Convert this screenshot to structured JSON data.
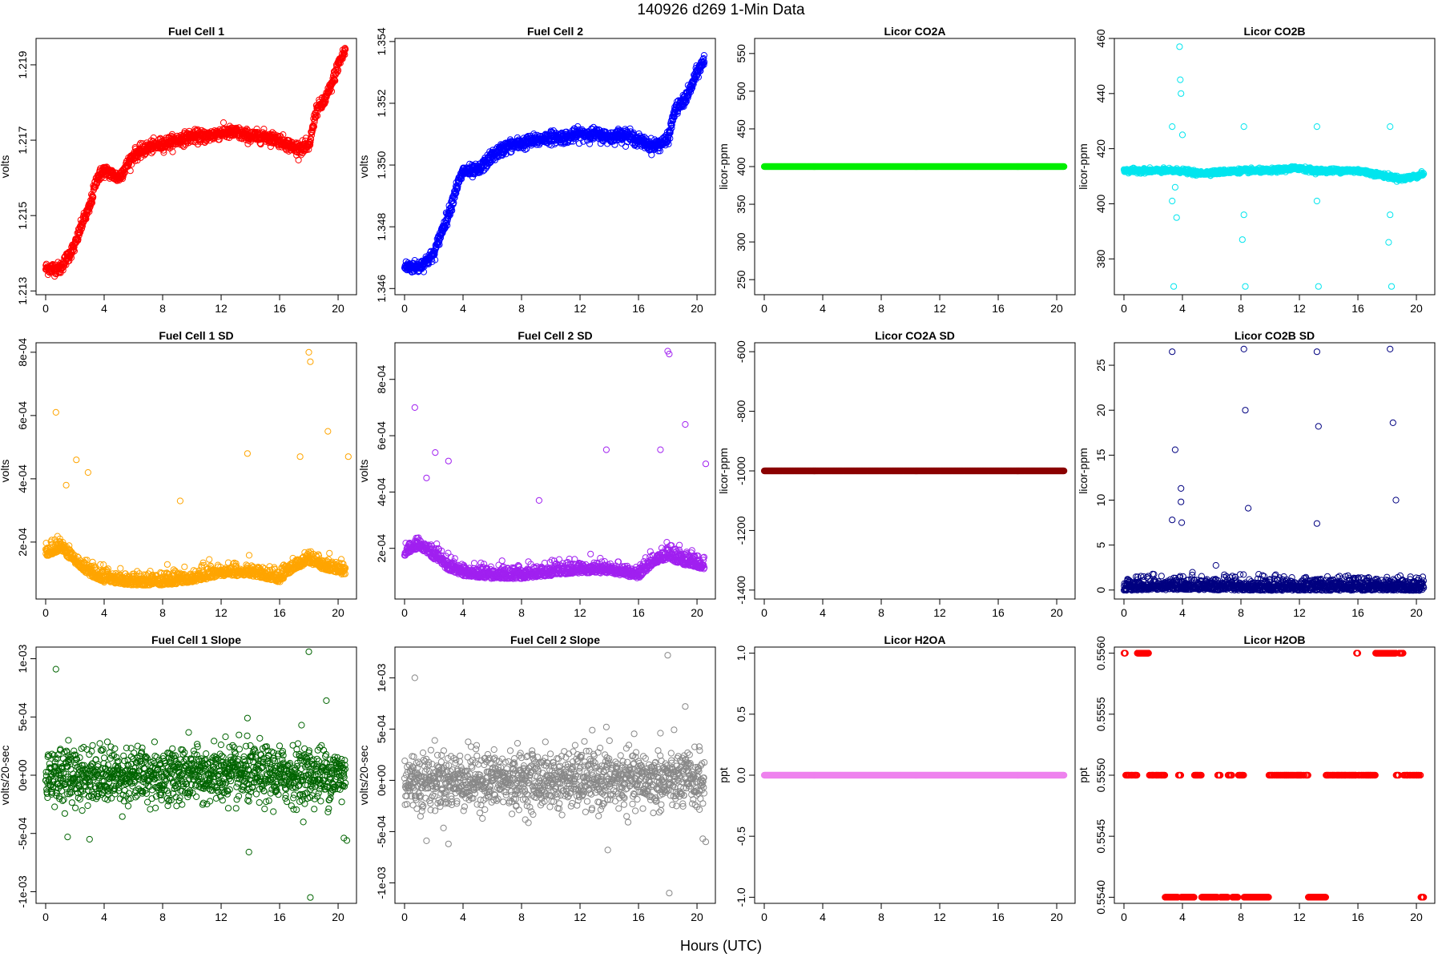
{
  "figure": {
    "title": "140926    d269    1-Min Data",
    "xlabel": "Hours (UTC)"
  },
  "chart_data": [
    {
      "type": "scatter",
      "title": "Fuel Cell 1",
      "ylabel": "volts",
      "color": "#ff0000",
      "xlim": [
        0,
        20.6
      ],
      "xticks": [
        0,
        4,
        8,
        12,
        16,
        20
      ],
      "ylim": [
        1.2129,
        1.2197
      ],
      "yticks": [
        {
          "v": 1.213,
          "label": "1.213"
        },
        {
          "v": 1.215,
          "label": "1.215"
        },
        {
          "v": 1.217,
          "label": "1.217"
        },
        {
          "v": 1.219,
          "label": "1.219"
        }
      ],
      "series": [
        {
          "x": [
            0,
            1,
            2,
            2.5,
            3,
            3.5,
            4,
            5,
            6,
            7,
            8,
            9,
            10,
            11,
            12,
            13,
            14,
            15,
            16,
            17,
            18,
            18.5,
            19,
            19.5,
            20,
            20.5
          ],
          "y": [
            1.2136,
            1.2136,
            1.2142,
            1.2148,
            1.2152,
            1.216,
            1.2162,
            1.216,
            1.2166,
            1.2168,
            1.2169,
            1.217,
            1.2171,
            1.2171,
            1.2172,
            1.2172,
            1.2171,
            1.2171,
            1.217,
            1.2168,
            1.2168,
            1.2178,
            1.218,
            1.2184,
            1.219,
            1.2194
          ]
        }
      ]
    },
    {
      "type": "scatter",
      "title": "Fuel Cell 2",
      "ylabel": "volts",
      "color": "#0000ff",
      "xlim": [
        0,
        20.6
      ],
      "xticks": [
        0,
        4,
        8,
        12,
        16,
        20
      ],
      "ylim": [
        1.3458,
        1.3541
      ],
      "yticks": [
        {
          "v": 1.346,
          "label": "1.346"
        },
        {
          "v": 1.348,
          "label": "1.348"
        },
        {
          "v": 1.35,
          "label": "1.350"
        },
        {
          "v": 1.352,
          "label": "1.352"
        },
        {
          "v": 1.354,
          "label": "1.354"
        }
      ],
      "series": [
        {
          "x": [
            0,
            1,
            2,
            2.5,
            3,
            3.5,
            4,
            5,
            6,
            7,
            8,
            9,
            10,
            11,
            12,
            13,
            14,
            15,
            16,
            17,
            18,
            18.5,
            19,
            19.5,
            20,
            20.5
          ],
          "y": [
            1.3467,
            1.3467,
            1.3471,
            1.3478,
            1.3484,
            1.3492,
            1.3498,
            1.3498,
            1.3503,
            1.3506,
            1.3507,
            1.3508,
            1.3509,
            1.3509,
            1.351,
            1.351,
            1.3509,
            1.351,
            1.3508,
            1.3506,
            1.3508,
            1.3518,
            1.352,
            1.3524,
            1.353,
            1.3534
          ]
        }
      ]
    },
    {
      "type": "scatter",
      "title": "Licor CO2A",
      "ylabel": "licor-ppm",
      "color": "#00ee00",
      "xlim": [
        0,
        20.6
      ],
      "xticks": [
        0,
        4,
        8,
        12,
        16,
        20
      ],
      "ylim": [
        230,
        570
      ],
      "yticks": [
        {
          "v": 250,
          "label": "250"
        },
        {
          "v": 300,
          "label": "300"
        },
        {
          "v": 350,
          "label": "350"
        },
        {
          "v": 400,
          "label": "400"
        },
        {
          "v": 450,
          "label": "450"
        },
        {
          "v": 500,
          "label": "500"
        },
        {
          "v": 550,
          "label": "550"
        }
      ],
      "series": [
        {
          "x": [
            0,
            20.5
          ],
          "y": [
            400,
            400
          ]
        }
      ]
    },
    {
      "type": "scatter",
      "title": "Licor CO2B",
      "ylabel": "licor-ppm",
      "color": "#00e5ee",
      "xlim": [
        0,
        20.6
      ],
      "xticks": [
        0,
        4,
        8,
        12,
        16,
        20
      ],
      "ylim": [
        367,
        460
      ],
      "yticks": [
        {
          "v": 380,
          "label": "380"
        },
        {
          "v": 400,
          "label": "400"
        },
        {
          "v": 420,
          "label": "420"
        },
        {
          "v": 440,
          "label": "440"
        },
        {
          "v": 460,
          "label": "460"
        }
      ],
      "series": [
        {
          "x": [
            0,
            3,
            3.5,
            4,
            5,
            8,
            10,
            12,
            13,
            16,
            18,
            19,
            20,
            20.5
          ],
          "y": [
            412,
            412,
            412,
            412,
            411,
            412,
            412,
            413,
            412,
            412,
            410,
            409,
            410,
            411
          ],
          "outliers_x": [
            3.3,
            3.4,
            3.6,
            3.8,
            3.85,
            3.9,
            4.0,
            3.3,
            3.5,
            8.2,
            8.3,
            8.1,
            8.2,
            13.2,
            13.3,
            13.2,
            18.2,
            18.3,
            18.1,
            18.2
          ],
          "outliers_y": [
            428,
            370,
            395,
            457,
            445,
            440,
            425,
            401,
            406,
            428,
            370,
            387,
            396,
            428,
            370,
            401,
            428,
            370,
            386,
            396
          ]
        }
      ]
    },
    {
      "type": "scatter",
      "title": "Fuel Cell 1 SD",
      "ylabel": "volts",
      "color": "#ffa500",
      "xlim": [
        0,
        20.6
      ],
      "xticks": [
        0,
        4,
        8,
        12,
        16,
        20
      ],
      "ylim": [
        2e-05,
        0.00083
      ],
      "yticks": [
        {
          "v": 0.0002,
          "label": "2e-04"
        },
        {
          "v": 0.0004,
          "label": "4e-04"
        },
        {
          "v": 0.0006,
          "label": "6e-04"
        },
        {
          "v": 0.0008,
          "label": "8e-04"
        }
      ],
      "series": [
        {
          "x": [
            0,
            1,
            2,
            3,
            4,
            6,
            8,
            10,
            12,
            14,
            16,
            17,
            18,
            19,
            20,
            20.5
          ],
          "y": [
            0.00016,
            0.00018,
            0.00014,
            0.0001,
            8e-05,
            7e-05,
            7e-05,
            8e-05,
            0.0001,
            0.0001,
            8e-05,
            0.00012,
            0.00014,
            0.00012,
            0.00011,
            0.0001
          ],
          "outliers_x": [
            0.7,
            1.4,
            2.1,
            2.9,
            9.2,
            13.8,
            17.4,
            18.0,
            18.1,
            19.3,
            20.7
          ],
          "outliers_y": [
            0.00061,
            0.00038,
            0.00046,
            0.00042,
            0.00033,
            0.00048,
            0.00047,
            0.0008,
            0.00077,
            0.00055,
            0.00047
          ]
        }
      ]
    },
    {
      "type": "scatter",
      "title": "Fuel Cell 2 SD",
      "ylabel": "volts",
      "color": "#a020f0",
      "xlim": [
        0,
        20.6
      ],
      "xticks": [
        0,
        4,
        8,
        12,
        16,
        20
      ],
      "ylim": [
        2e-05,
        0.00093
      ],
      "yticks": [
        {
          "v": 0.0002,
          "label": "2e-04"
        },
        {
          "v": 0.0004,
          "label": "4e-04"
        },
        {
          "v": 0.0006,
          "label": "6e-04"
        },
        {
          "v": 0.0008,
          "label": "8e-04"
        }
      ],
      "series": [
        {
          "x": [
            0,
            1,
            2,
            3,
            4,
            6,
            8,
            10,
            12,
            14,
            16,
            17,
            18,
            19,
            20,
            20.5
          ],
          "y": [
            0.00018,
            0.00021,
            0.00017,
            0.00013,
            0.00011,
            0.0001,
            0.0001,
            0.00011,
            0.00012,
            0.00012,
            0.0001,
            0.00015,
            0.00017,
            0.00015,
            0.00014,
            0.00013
          ],
          "outliers_x": [
            0.7,
            1.5,
            2.1,
            3.0,
            9.2,
            13.8,
            17.5,
            18.0,
            18.1,
            19.2,
            20.6
          ],
          "outliers_y": [
            0.0007,
            0.00045,
            0.00054,
            0.00051,
            0.00037,
            0.00055,
            0.00055,
            0.0009,
            0.00089,
            0.00064,
            0.0005
          ]
        }
      ]
    },
    {
      "type": "scatter",
      "title": "Licor CO2A SD",
      "ylabel": "licor-ppm",
      "color": "#8b0000",
      "xlim": [
        0,
        20.6
      ],
      "xticks": [
        0,
        4,
        8,
        12,
        16,
        20
      ],
      "ylim": [
        -1430,
        -570
      ],
      "yticks": [
        {
          "v": -1400,
          "label": "-1400"
        },
        {
          "v": -1200,
          "label": "-1200"
        },
        {
          "v": -1000,
          "label": "-1000"
        },
        {
          "v": -800,
          "label": "-800"
        },
        {
          "v": -600,
          "label": "-600"
        }
      ],
      "series": [
        {
          "x": [
            0,
            20.5
          ],
          "y": [
            -1000,
            -1000
          ]
        }
      ]
    },
    {
      "type": "scatter",
      "title": "Licor CO2B SD",
      "ylabel": "licor-ppm",
      "color": "#000080",
      "xlim": [
        0,
        20.6
      ],
      "xticks": [
        0,
        4,
        8,
        12,
        16,
        20
      ],
      "ylim": [
        -1,
        27.5
      ],
      "yticks": [
        {
          "v": 0,
          "label": "0"
        },
        {
          "v": 5,
          "label": "5"
        },
        {
          "v": 10,
          "label": "10"
        },
        {
          "v": 15,
          "label": "15"
        },
        {
          "v": 20,
          "label": "20"
        },
        {
          "v": 25,
          "label": "25"
        }
      ],
      "series": [
        {
          "x": [
            0,
            4,
            8,
            12,
            16,
            20,
            20.5
          ],
          "y": [
            0.2,
            0.3,
            0.2,
            0.2,
            0.2,
            0.2,
            0.2
          ],
          "outliers_x": [
            3.3,
            3.5,
            3.9,
            3.9,
            3.95,
            3.3,
            8.2,
            8.3,
            8.5,
            13.2,
            13.3,
            13.2,
            18.2,
            18.4,
            18.6
          ],
          "outliers_y": [
            26.5,
            15.6,
            11.3,
            9.8,
            7.5,
            7.8,
            26.8,
            20.0,
            9.1,
            26.5,
            18.2,
            7.4,
            26.8,
            18.6,
            10.0
          ]
        }
      ]
    },
    {
      "type": "scatter",
      "title": "Fuel Cell 1 Slope",
      "ylabel": "volts/20-sec",
      "color": "#006400",
      "xlim": [
        0,
        20.6
      ],
      "xticks": [
        0,
        4,
        8,
        12,
        16,
        20
      ],
      "ylim": [
        -0.0011,
        0.0011
      ],
      "yticks": [
        {
          "v": -0.001,
          "label": "-1e-03"
        },
        {
          "v": -0.0005,
          "label": "-5e-04"
        },
        {
          "v": 0,
          "label": "0e+00"
        },
        {
          "v": 0.0005,
          "label": "5e-04"
        },
        {
          "v": 0.001,
          "label": "1e-03"
        }
      ],
      "series": [
        {
          "x": [
            0,
            20.5
          ],
          "y": [
            0,
            0
          ],
          "outliers_x": [
            0.7,
            1.5,
            3.0,
            12.3,
            13.9,
            13.8,
            17.5,
            18.0,
            18.1,
            19.2,
            20.4,
            20.6
          ],
          "outliers_y": [
            0.00091,
            -0.00053,
            -0.00055,
            0.00033,
            -0.00066,
            0.00049,
            0.00043,
            0.00106,
            -0.00105,
            0.00064,
            -0.00054,
            -0.00056
          ]
        }
      ]
    },
    {
      "type": "scatter",
      "title": "Fuel Cell 2 Slope",
      "ylabel": "volts/20-sec",
      "color": "#888888",
      "xlim": [
        0,
        20.6
      ],
      "xticks": [
        0,
        4,
        8,
        12,
        16,
        20
      ],
      "ylim": [
        -0.0012,
        0.0013
      ],
      "yticks": [
        {
          "v": -0.001,
          "label": "-1e-03"
        },
        {
          "v": -0.0005,
          "label": "-5e-04"
        },
        {
          "v": 0,
          "label": "0e+00"
        },
        {
          "v": 0.0005,
          "label": "5e-04"
        },
        {
          "v": 0.001,
          "label": "1e-03"
        }
      ],
      "series": [
        {
          "x": [
            0,
            20.5
          ],
          "y": [
            0,
            0
          ],
          "outliers_x": [
            0.7,
            1.5,
            3.0,
            12.3,
            13.9,
            13.8,
            17.5,
            18.0,
            18.1,
            19.2,
            20.4,
            20.6
          ],
          "outliers_y": [
            0.001,
            -0.00059,
            -0.00062,
            0.00038,
            -0.00068,
            0.00052,
            0.00046,
            0.00122,
            -0.0011,
            0.00072,
            -0.00057,
            -0.0006
          ]
        }
      ]
    },
    {
      "type": "scatter",
      "title": "Licor H2OA",
      "ylabel": "ppt",
      "color": "#ee82ee",
      "xlim": [
        0,
        20.6
      ],
      "xticks": [
        0,
        4,
        8,
        12,
        16,
        20
      ],
      "ylim": [
        -1.05,
        1.05
      ],
      "yticks": [
        {
          "v": -1,
          "label": "-1.0"
        },
        {
          "v": -0.5,
          "label": "-0.5"
        },
        {
          "v": 0,
          "label": "0.0"
        },
        {
          "v": 0.5,
          "label": "0.5"
        },
        {
          "v": 1,
          "label": "1.0"
        }
      ],
      "series": [
        {
          "x": [
            0,
            20.5
          ],
          "y": [
            0,
            0
          ]
        }
      ]
    },
    {
      "type": "scatter",
      "title": "Licor H2OB",
      "ylabel": "ppt",
      "color": "#ff0000",
      "xlim": [
        0,
        20.6
      ],
      "xticks": [
        0,
        4,
        8,
        12,
        16,
        20
      ],
      "ylim": [
        0.55395,
        0.55605
      ],
      "yticks": [
        {
          "v": 0.554,
          "label": "0.5540"
        },
        {
          "v": 0.5545,
          "label": "0.5545"
        },
        {
          "v": 0.555,
          "label": "0.5550"
        },
        {
          "v": 0.5555,
          "label": "0.5555"
        },
        {
          "v": 0.556,
          "label": "0.5560"
        }
      ],
      "series": [
        {
          "x": [
            0,
            20.5
          ],
          "y": [
            0.555,
            0.555
          ],
          "high_ranges": [
            [
              0,
              0.1
            ],
            [
              0.9,
              1.7
            ],
            [
              15.9,
              16.0
            ],
            [
              17.2,
              18.6
            ],
            [
              18.8,
              19.1
            ]
          ],
          "low_ranges": [
            [
              2.8,
              3.7
            ],
            [
              3.9,
              4.8
            ],
            [
              5.3,
              6.4
            ],
            [
              6.6,
              7.1
            ],
            [
              7.4,
              7.8
            ],
            [
              8.2,
              9.9
            ],
            [
              12.6,
              13.8
            ],
            [
              20.3,
              20.6
            ]
          ]
        }
      ]
    }
  ]
}
